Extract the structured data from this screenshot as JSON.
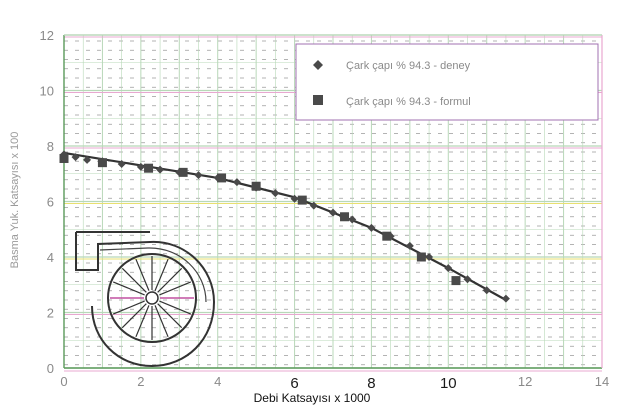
{
  "chart_data": {
    "type": "scatter",
    "xlabel": "Debi Katsayısı x 1000",
    "ylabel": "Basma Yuk. Katsayısı x 100",
    "xlim": [
      0,
      14
    ],
    "ylim": [
      0,
      12
    ],
    "x_ticks": [
      "0",
      "2",
      "4",
      "6",
      "8",
      "10",
      "12",
      "14"
    ],
    "y_ticks": [
      "0",
      "2",
      "4",
      "6",
      "8",
      "10",
      "12"
    ],
    "grid": true,
    "legend_position": "top-right",
    "series": [
      {
        "name": "Çark çapı % 94.3 - deney",
        "marker": "diamond",
        "color": "#4a4a4a",
        "points": [
          [
            0.0,
            7.7
          ],
          [
            0.3,
            7.6
          ],
          [
            0.6,
            7.5
          ],
          [
            1.0,
            7.45
          ],
          [
            1.5,
            7.35
          ],
          [
            2.0,
            7.25
          ],
          [
            2.5,
            7.15
          ],
          [
            3.0,
            7.05
          ],
          [
            3.5,
            6.95
          ],
          [
            4.0,
            6.85
          ],
          [
            4.5,
            6.7
          ],
          [
            5.0,
            6.5
          ],
          [
            5.5,
            6.3
          ],
          [
            6.0,
            6.1
          ],
          [
            6.5,
            5.85
          ],
          [
            7.0,
            5.6
          ],
          [
            7.5,
            5.35
          ],
          [
            8.0,
            5.05
          ],
          [
            8.5,
            4.75
          ],
          [
            9.0,
            4.4
          ],
          [
            9.5,
            4.0
          ],
          [
            10.0,
            3.6
          ],
          [
            10.5,
            3.2
          ],
          [
            11.0,
            2.8
          ],
          [
            11.5,
            2.5
          ]
        ]
      },
      {
        "name": "Çark çapı % 94.3 - formul",
        "marker": "square",
        "color": "#4a4a4a",
        "points": [
          [
            0.0,
            7.55
          ],
          [
            1.0,
            7.4
          ],
          [
            2.2,
            7.2
          ],
          [
            3.1,
            7.05
          ],
          [
            4.1,
            6.85
          ],
          [
            5.0,
            6.55
          ],
          [
            6.2,
            6.05
          ],
          [
            7.3,
            5.45
          ],
          [
            8.4,
            4.75
          ],
          [
            9.3,
            4.0
          ],
          [
            10.2,
            3.15
          ]
        ]
      }
    ],
    "fit_line": [
      [
        0.0,
        7.75
      ],
      [
        2.0,
        7.3
      ],
      [
        4.0,
        6.85
      ],
      [
        6.0,
        6.15
      ],
      [
        8.0,
        5.05
      ],
      [
        10.0,
        3.6
      ],
      [
        11.5,
        2.45
      ]
    ]
  },
  "colors": {
    "grid_major": "#b8d8b8",
    "grid_pink": "#e8a8d0",
    "grid_yellow": "#e8e070",
    "plot_frame": "#5a9a5a",
    "dash": "#4a4a4a",
    "ink": "#333333",
    "legend_border": "#a070b0"
  }
}
